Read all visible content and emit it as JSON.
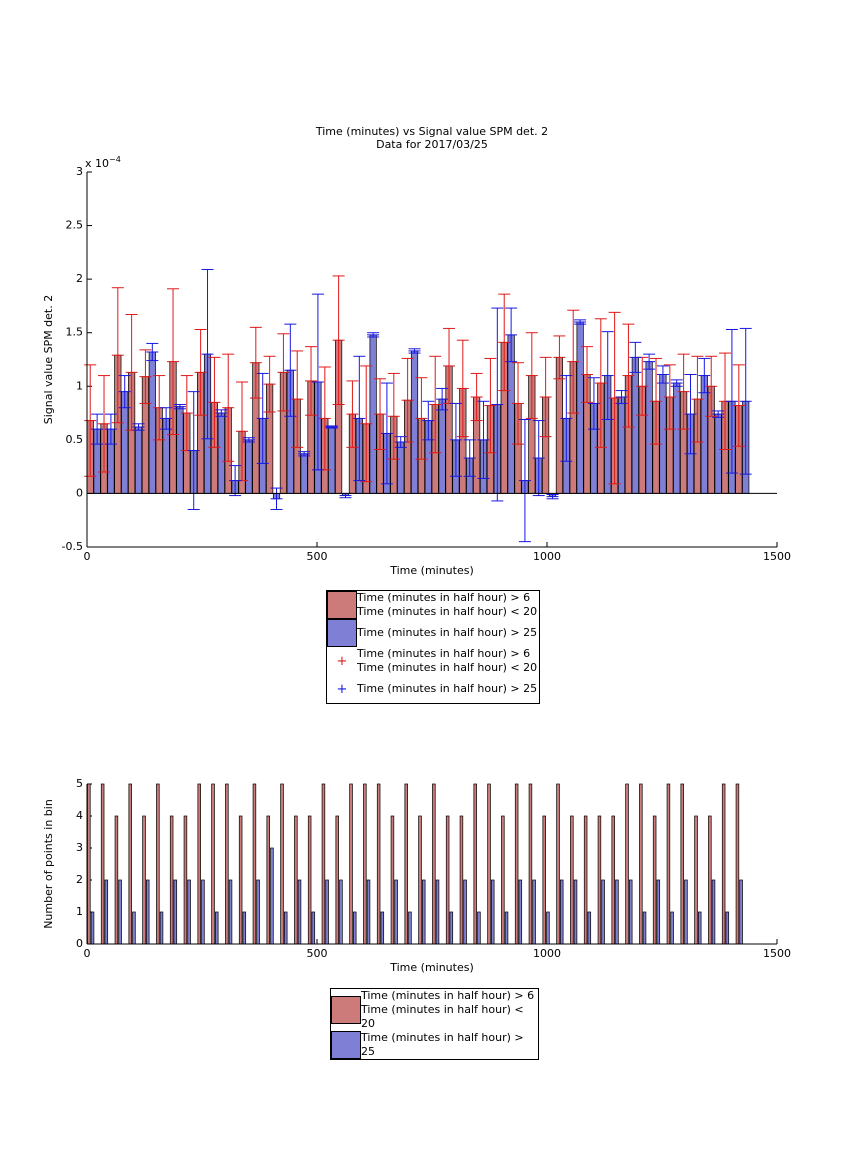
{
  "chart_data": [
    {
      "type": "bar-errorbar",
      "title": "Time (minutes) vs Signal value SPM det. 2",
      "subtitle": "Data for 2017/03/25",
      "x_label": "Time (minutes)",
      "y_label": "Signal value SPM det. 2",
      "y_exponent_base": "x 10",
      "y_exponent": "−4",
      "x": [
        15,
        45,
        75,
        105,
        135,
        165,
        195,
        225,
        255,
        285,
        315,
        345,
        375,
        405,
        435,
        465,
        495,
        525,
        555,
        585,
        615,
        645,
        675,
        705,
        735,
        765,
        795,
        825,
        855,
        885,
        915,
        945,
        975,
        1005,
        1035,
        1065,
        1095,
        1125,
        1155,
        1185,
        1215,
        1245,
        1275,
        1305,
        1335,
        1365,
        1395,
        1425
      ],
      "xlim": [
        0,
        1500
      ],
      "xticks": [
        0,
        500,
        1000,
        1500
      ],
      "ylim": [
        -0.5,
        3
      ],
      "yticks": [
        -0.5,
        0,
        0.5,
        1,
        1.5,
        2,
        2.5,
        3
      ],
      "series": [
        {
          "name": "Time (minutes in half hour) > 6\nTime (minutes in half hour) < 20",
          "color": "#cc7a7a",
          "error_color": "#e01818",
          "values": [
            0.68,
            0.65,
            1.29,
            1.13,
            1.09,
            0.8,
            1.23,
            0.75,
            1.13,
            0.85,
            0.8,
            0.58,
            1.22,
            1.02,
            1.13,
            0.88,
            1.05,
            0.7,
            1.43,
            0.74,
            0.65,
            0.74,
            0.72,
            0.87,
            0.7,
            0.83,
            1.19,
            0.98,
            0.9,
            0.82,
            1.41,
            0.84,
            1.1,
            0.9,
            1.27,
            1.23,
            1.11,
            1.03,
            0.89,
            1.1,
            1.0,
            0.86,
            0.9,
            0.95,
            0.88,
            1.0,
            0.86,
            0.82
          ],
          "errors": [
            0.52,
            0.45,
            0.63,
            0.54,
            0.25,
            0.3,
            0.68,
            0.35,
            0.4,
            0.42,
            0.5,
            0.46,
            0.33,
            0.26,
            0.36,
            0.45,
            0.32,
            0.48,
            0.6,
            0.31,
            0.54,
            0.33,
            0.4,
            0.39,
            0.38,
            0.45,
            0.35,
            0.45,
            0.22,
            0.44,
            0.45,
            0.38,
            0.4,
            0.37,
            0.2,
            0.48,
            0.26,
            0.6,
            0.8,
            0.48,
            0.27,
            0.4,
            0.3,
            0.35,
            0.4,
            0.28,
            0.45,
            0.38
          ]
        },
        {
          "name": "Time (minutes in half hour) > 25",
          "color": "#7f7fd6",
          "error_color": "#1818e0",
          "values": [
            0.6,
            0.6,
            0.95,
            0.62,
            1.32,
            0.7,
            0.81,
            0.4,
            1.3,
            0.75,
            0.12,
            0.5,
            0.7,
            -0.05,
            1.15,
            0.37,
            1.04,
            0.62,
            -0.02,
            0.7,
            1.48,
            0.56,
            0.48,
            1.33,
            0.68,
            0.88,
            0.5,
            0.33,
            0.5,
            0.83,
            1.48,
            0.12,
            0.33,
            -0.03,
            0.7,
            1.6,
            0.84,
            1.1,
            0.9,
            1.27,
            1.23,
            1.11,
            1.03,
            0.74,
            1.1,
            0.74,
            0.86,
            0.86
          ],
          "errors": [
            0.14,
            0.14,
            0.15,
            0.03,
            0.08,
            0.1,
            0.02,
            0.55,
            0.79,
            0.03,
            0.14,
            0.02,
            0.42,
            0.1,
            0.43,
            0.02,
            0.82,
            0.01,
            0.02,
            0.58,
            0.02,
            0.47,
            0.05,
            0.02,
            0.18,
            0.1,
            0.34,
            0.17,
            0.36,
            0.9,
            0.25,
            0.57,
            0.35,
            0.02,
            0.4,
            0.02,
            0.24,
            0.41,
            0.06,
            0.14,
            0.07,
            0.08,
            0.03,
            0.37,
            0.16,
            0.03,
            0.67,
            0.68
          ]
        }
      ]
    },
    {
      "type": "bar",
      "x_label": "Time (minutes)",
      "y_label": "Number of points in bin",
      "x": [
        15,
        45,
        75,
        105,
        135,
        165,
        195,
        225,
        255,
        285,
        315,
        345,
        375,
        405,
        435,
        465,
        495,
        525,
        555,
        585,
        615,
        645,
        675,
        705,
        735,
        765,
        795,
        825,
        855,
        885,
        915,
        945,
        975,
        1005,
        1035,
        1065,
        1095,
        1125,
        1155,
        1185,
        1215,
        1245,
        1275,
        1305,
        1335,
        1365,
        1395,
        1425
      ],
      "xlim": [
        0,
        1500
      ],
      "xticks": [
        0,
        500,
        1000,
        1500
      ],
      "ylim": [
        0,
        5
      ],
      "yticks": [
        0,
        1,
        2,
        3,
        4,
        5
      ],
      "series": [
        {
          "name": "Time (minutes in half hour) > 6\nTime (minutes in half hour) < 20",
          "color": "#cc7a7a",
          "values": [
            5,
            5,
            4,
            5,
            4,
            5,
            4,
            4,
            5,
            5,
            5,
            4,
            5,
            4,
            5,
            4,
            4,
            5,
            4,
            5,
            5,
            5,
            4,
            5,
            4,
            5,
            4,
            4,
            5,
            5,
            4,
            5,
            5,
            4,
            5,
            4,
            4,
            4,
            4,
            5,
            5,
            4,
            5,
            5,
            4,
            4,
            5,
            5
          ]
        },
        {
          "name": "Time (minutes in half hour) > 25",
          "color": "#7f7fd6",
          "values": [
            1,
            2,
            2,
            1,
            2,
            1,
            2,
            2,
            2,
            1,
            2,
            1,
            2,
            3,
            1,
            2,
            1,
            2,
            2,
            1,
            2,
            1,
            2,
            1,
            2,
            2,
            1,
            2,
            1,
            2,
            1,
            2,
            2,
            1,
            2,
            2,
            1,
            2,
            2,
            2,
            1,
            2,
            1,
            2,
            1,
            2,
            1,
            2
          ]
        }
      ]
    }
  ]
}
